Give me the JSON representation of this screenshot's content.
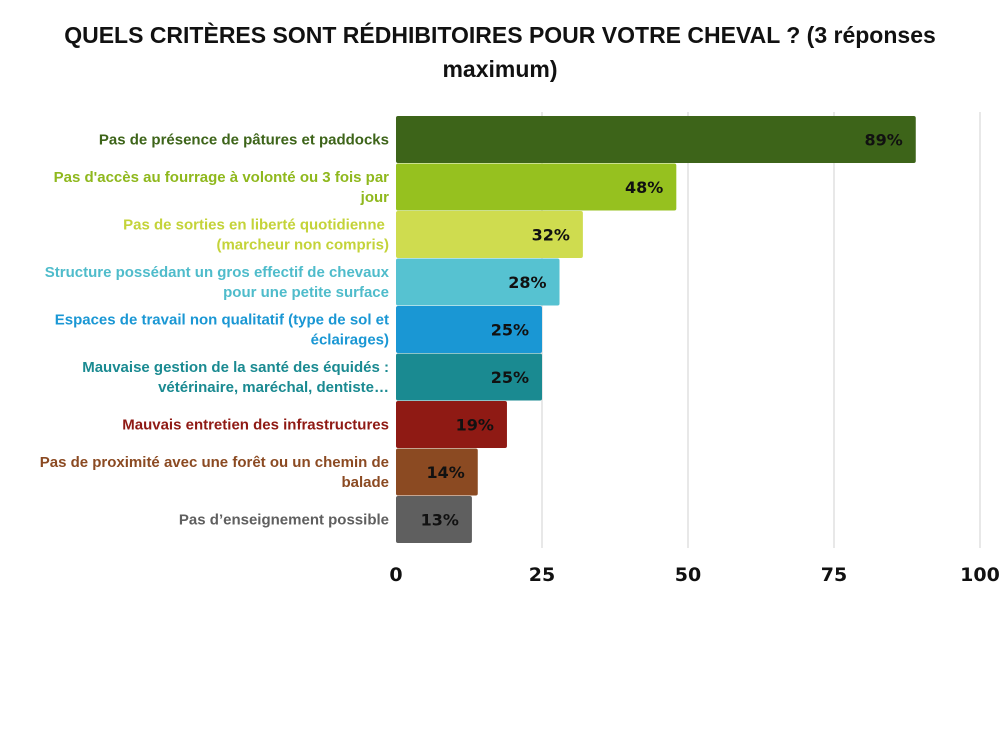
{
  "chart_data": {
    "type": "bar",
    "orientation": "horizontal",
    "title": "QUELS CRITÈRES SONT RÉDHIBITOIRES POUR VOTRE CHEVAL ? (3 réponses maximum)",
    "xlim": [
      0,
      100
    ],
    "xticks": [
      "0",
      "25",
      "50",
      "75",
      "100"
    ],
    "grid": true,
    "categories": [
      [
        "Pas de présence de pâtures et paddocks"
      ],
      [
        "Pas d'accès au fourrage à volonté ou 3 fois par",
        "jour"
      ],
      [
        "Pas de sorties en liberté quotidienne ",
        "(marcheur non compris)"
      ],
      [
        "Structure possédant un gros effectif de chevaux",
        "pour une petite surface"
      ],
      [
        "Espaces de travail non qualitatif (type de sol et",
        "éclairages)"
      ],
      [
        "Mauvaise gestion de la santé des équidés :",
        "vétérinaire, maréchal, dentiste…"
      ],
      [
        "Mauvais entretien des infrastructures"
      ],
      [
        "Pas de proximité avec une forêt ou un chemin de",
        "balade"
      ],
      [
        "Pas d’enseignement possible"
      ]
    ],
    "values": [
      89,
      48,
      32,
      28,
      25,
      25,
      19,
      14,
      13
    ],
    "value_labels": [
      "89%",
      "48%",
      "32%",
      "28%",
      "25%",
      "25%",
      "19%",
      "14%",
      "13%"
    ],
    "colors": [
      "#3d6419",
      "#96c11f",
      "#cfdc4f",
      "#56c2d1",
      "#1a97d4",
      "#1a8a91",
      "#8f1a14",
      "#8b4a22",
      "#5f5f5f"
    ],
    "label_colors": [
      "#3d6419",
      "#8fb81d",
      "#c4d339",
      "#4fbccb",
      "#1a97d4",
      "#1a8a91",
      "#8f1a14",
      "#8b4a22",
      "#5f5f5f"
    ]
  }
}
